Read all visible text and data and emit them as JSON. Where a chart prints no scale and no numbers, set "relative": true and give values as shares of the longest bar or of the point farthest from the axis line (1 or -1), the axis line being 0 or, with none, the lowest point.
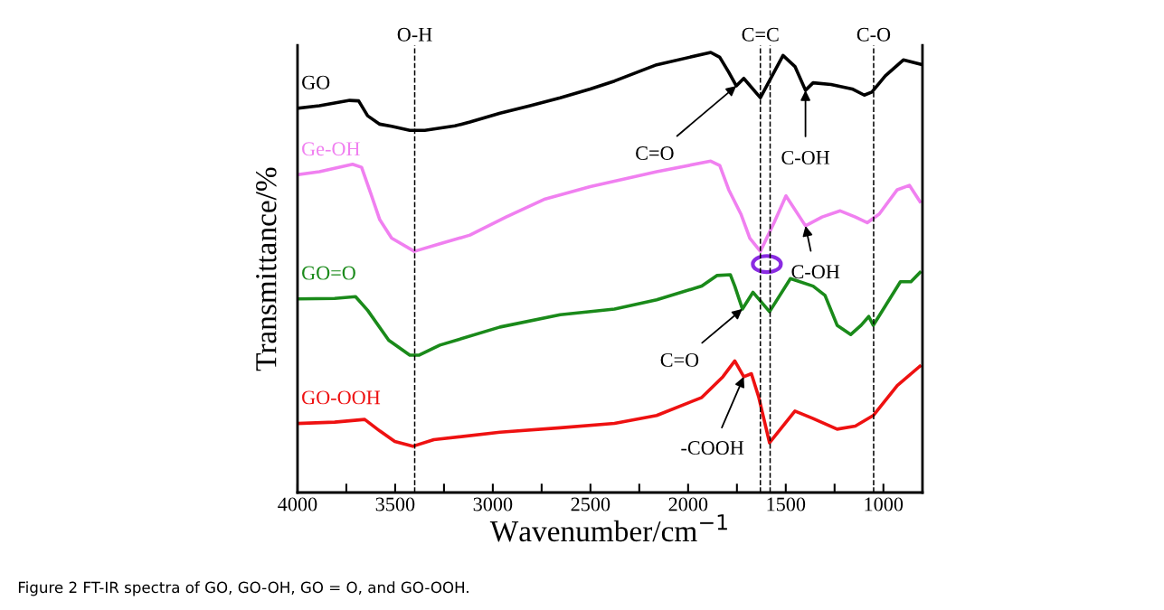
{
  "chart_data": {
    "type": "line",
    "relative": true,
    "xlabel": "Wavenumber/cm$^{−1}$",
    "ylabel": "Transmittance/%",
    "xlim": [
      4000,
      800
    ],
    "xticks": [
      4000,
      {
        "value": 3750,
        "label": null
      },
      3500,
      {
        "value": 3250,
        "label": null
      },
      3000,
      {
        "value": 2750,
        "label": null
      },
      2500,
      {
        "value": 2250,
        "label": null
      },
      2000,
      {
        "value": 1750,
        "label": null
      },
      1500,
      {
        "value": 1250,
        "label": null
      },
      1000
    ],
    "tick_labels": "x",
    "grid": false,
    "marker": "none",
    "line_style": "solid",
    "series": [
      {
        "name": "GO",
        "color": "#000000",
        "x": [
          4000,
          3888,
          3733,
          3687,
          3641,
          3579,
          3518,
          3425,
          3348,
          3194,
          3117,
          2963,
          2809,
          2655,
          2501,
          2377,
          2161,
          1884,
          1838,
          1792,
          1753,
          1715,
          1630,
          1514,
          1453,
          1399,
          1360,
          1268,
          1160,
          1098,
          1059,
          990,
          898,
          800
        ],
        "values": [
          0.873,
          0.879,
          0.891,
          0.89,
          0.856,
          0.837,
          0.832,
          0.823,
          0.823,
          0.833,
          0.842,
          0.862,
          0.879,
          0.897,
          0.917,
          0.935,
          0.972,
          1,
          0.989,
          0.955,
          0.924,
          0.941,
          0.897,
          0.993,
          0.968,
          0.914,
          0.931,
          0.927,
          0.917,
          0.903,
          0.91,
          0.947,
          0.983,
          0.972
        ]
      },
      {
        "name": "Ge-OH",
        "color": "#f080f0",
        "x": [
          4000,
          3888,
          3718,
          3672,
          3626,
          3579,
          3518,
          3402,
          3271,
          3117,
          2932,
          2732,
          2501,
          2161,
          1884,
          1838,
          1792,
          1730,
          1684,
          1630,
          1560,
          1499,
          1399,
          1314,
          1221,
          1144,
          1083,
          1021,
          929,
          867,
          813
        ],
        "values": [
          0.722,
          0.729,
          0.746,
          0.739,
          0.681,
          0.62,
          0.578,
          0.548,
          0.565,
          0.585,
          0.626,
          0.667,
          0.695,
          0.729,
          0.753,
          0.743,
          0.688,
          0.633,
          0.578,
          0.548,
          0.613,
          0.674,
          0.606,
          0.626,
          0.64,
          0.626,
          0.613,
          0.633,
          0.688,
          0.698,
          0.661
        ]
      },
      {
        "name": "GO=O",
        "color": "#1a8a1a",
        "x": [
          4000,
          3810,
          3703,
          3641,
          3533,
          3425,
          3379,
          3271,
          2963,
          2655,
          2377,
          2161,
          1930,
          1853,
          1784,
          1761,
          1722,
          1668,
          1583,
          1476,
          1360,
          1299,
          1237,
          1167,
          1114,
          1075,
          1052,
          990,
          913,
          859,
          813
        ],
        "values": [
          0.44,
          0.441,
          0.445,
          0.414,
          0.346,
          0.312,
          0.312,
          0.335,
          0.376,
          0.404,
          0.417,
          0.438,
          0.469,
          0.493,
          0.495,
          0.469,
          0.417,
          0.455,
          0.411,
          0.486,
          0.469,
          0.448,
          0.38,
          0.359,
          0.38,
          0.4,
          0.38,
          0.424,
          0.479,
          0.479,
          0.5
        ]
      },
      {
        "name": "GO-OOH",
        "color": "#ee1111",
        "x": [
          4000,
          3810,
          3656,
          3579,
          3502,
          3410,
          3302,
          2963,
          2655,
          2377,
          2161,
          1930,
          1822,
          1761,
          1715,
          1676,
          1638,
          1583,
          1453,
          1360,
          1237,
          1144,
          1052,
          929,
          813
        ],
        "values": [
          0.157,
          0.16,
          0.166,
          0.14,
          0.116,
          0.105,
          0.12,
          0.137,
          0.147,
          0.157,
          0.175,
          0.216,
          0.263,
          0.299,
          0.263,
          0.27,
          0.216,
          0.113,
          0.185,
          0.168,
          0.144,
          0.151,
          0.175,
          0.243,
          0.287
        ]
      }
    ],
    "ref_lines": [
      {
        "axis": "x",
        "value": 3400,
        "label": "O-H",
        "color": "#000000",
        "line_style": "dashed"
      },
      {
        "axis": "x",
        "value": 1630,
        "label": "C=C",
        "color": "#000000",
        "line_style": "dashed"
      },
      {
        "axis": "x",
        "value": 1580,
        "label": null,
        "color": "#000000",
        "line_style": "dashed"
      },
      {
        "axis": "x",
        "value": 1050,
        "label": "C-O",
        "color": "#000000",
        "line_style": "dashed"
      }
    ],
    "annotations": [
      {
        "text": "C=O",
        "x": 1753,
        "y": 0.924
      },
      {
        "text": "C-OH",
        "x": 1399,
        "y": 0.914
      },
      {
        "text": "C-OH",
        "x": 1399,
        "y": 0.606
      },
      {
        "text": "C=O",
        "x": 1722,
        "y": 0.417
      },
      {
        "text": "-COOH",
        "x": 1715,
        "y": 0.263
      },
      "Figure 2 FT-IR spectra of GO, GO-OH, GO = O, and GO-OOH."
    ]
  }
}
